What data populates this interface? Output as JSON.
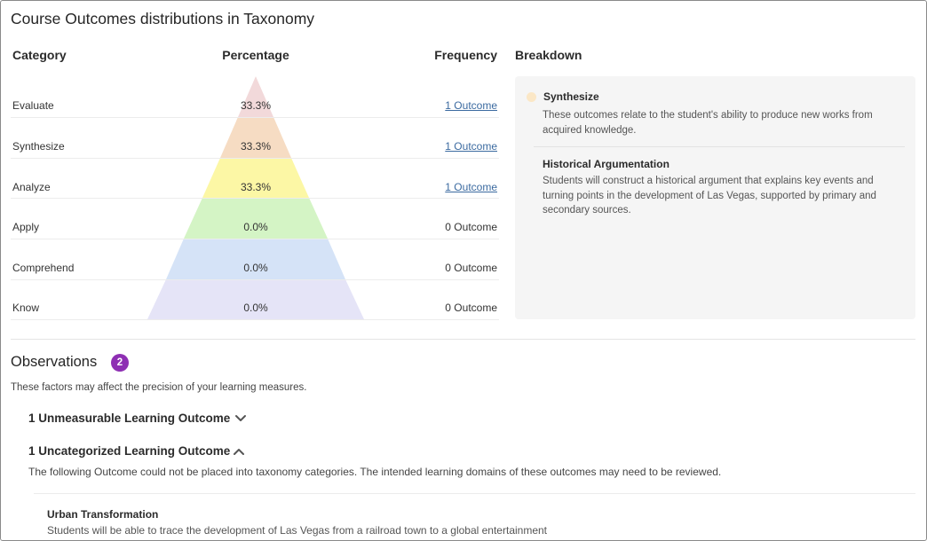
{
  "title": "Course Outcomes distributions in Taxonomy",
  "table": {
    "headers": {
      "category": "Category",
      "percentage": "Percentage",
      "frequency": "Frequency",
      "breakdown": "Breakdown"
    },
    "rows": [
      {
        "category": "Evaluate",
        "percentage": "33.3%",
        "frequency": "1 Outcome",
        "is_link": true,
        "color": "#f2d9da"
      },
      {
        "category": "Synthesize",
        "percentage": "33.3%",
        "frequency": "1 Outcome",
        "is_link": true,
        "color": "#f6dcc3"
      },
      {
        "category": "Analyze",
        "percentage": "33.3%",
        "frequency": "1 Outcome",
        "is_link": true,
        "color": "#fcf7a5"
      },
      {
        "category": "Apply",
        "percentage": "0.0%",
        "frequency": "0 Outcome",
        "is_link": false,
        "color": "#d4f4c5"
      },
      {
        "category": "Comprehend",
        "percentage": "0.0%",
        "frequency": "0 Outcome",
        "is_link": false,
        "color": "#d5e3f7"
      },
      {
        "category": "Know",
        "percentage": "0.0%",
        "frequency": "0 Outcome",
        "is_link": false,
        "color": "#e5e4f7"
      }
    ]
  },
  "breakdown": {
    "dot_color": "#fbe7c6",
    "category": "Synthesize",
    "description": "These outcomes relate to the student's ability to produce new works from acquired knowledge.",
    "outcome_title": "Historical Argumentation",
    "outcome_description": "Students will construct a historical argument that explains key events and turning points in the development of Las Vegas, supported by primary and secondary sources."
  },
  "observations": {
    "title": "Observations",
    "count": "2",
    "badge_color": "#8e2fb3",
    "subtitle": "These factors may affect the precision of your learning measures.",
    "items": [
      {
        "label": "1 Unmeasurable Learning Outcome",
        "icon": "chevron-down-icon"
      },
      {
        "label": "1 Uncategorized Learning Outcome",
        "icon": "chevron-up-icon"
      }
    ],
    "uncategorized_desc": "The following Outcome could not be placed into taxonomy categories. The intended learning domains of these outcomes may need to be reviewed.",
    "uncategorized_outcome": {
      "title": "Urban Transformation",
      "description": "Students will be able to trace the development of Las Vegas from a railroad town to a global entertainment"
    }
  }
}
